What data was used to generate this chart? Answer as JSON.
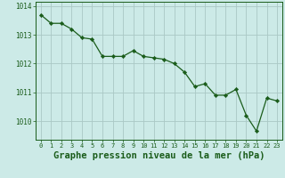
{
  "x": [
    0,
    1,
    2,
    3,
    4,
    5,
    6,
    7,
    8,
    9,
    10,
    11,
    12,
    13,
    14,
    15,
    16,
    17,
    18,
    19,
    20,
    21,
    22,
    23
  ],
  "y": [
    1013.7,
    1013.4,
    1013.4,
    1013.2,
    1012.9,
    1012.85,
    1012.25,
    1012.25,
    1012.25,
    1012.45,
    1012.25,
    1012.2,
    1012.15,
    1012.0,
    1011.7,
    1011.2,
    1011.3,
    1010.9,
    1010.9,
    1011.1,
    1010.2,
    1009.65,
    1010.8,
    1010.7
  ],
  "line_color": "#1a5c1a",
  "marker": "D",
  "marker_size": 2.2,
  "bg_color": "#cceae7",
  "grid_color_major": "#aac8c5",
  "grid_color_minor": "#c2deda",
  "axis_color": "#1a5c1a",
  "tick_color": "#1a5c1a",
  "label_color": "#1a5c1a",
  "xlabel": "Graphe pression niveau de la mer (hPa)",
  "xlabel_fontsize": 7.5,
  "ylim_min": 1009.35,
  "ylim_max": 1014.15,
  "yticks": [
    1010,
    1011,
    1012,
    1013,
    1014
  ],
  "xticks": [
    0,
    1,
    2,
    3,
    4,
    5,
    6,
    7,
    8,
    9,
    10,
    11,
    12,
    13,
    14,
    15,
    16,
    17,
    18,
    19,
    20,
    21,
    22,
    23
  ]
}
